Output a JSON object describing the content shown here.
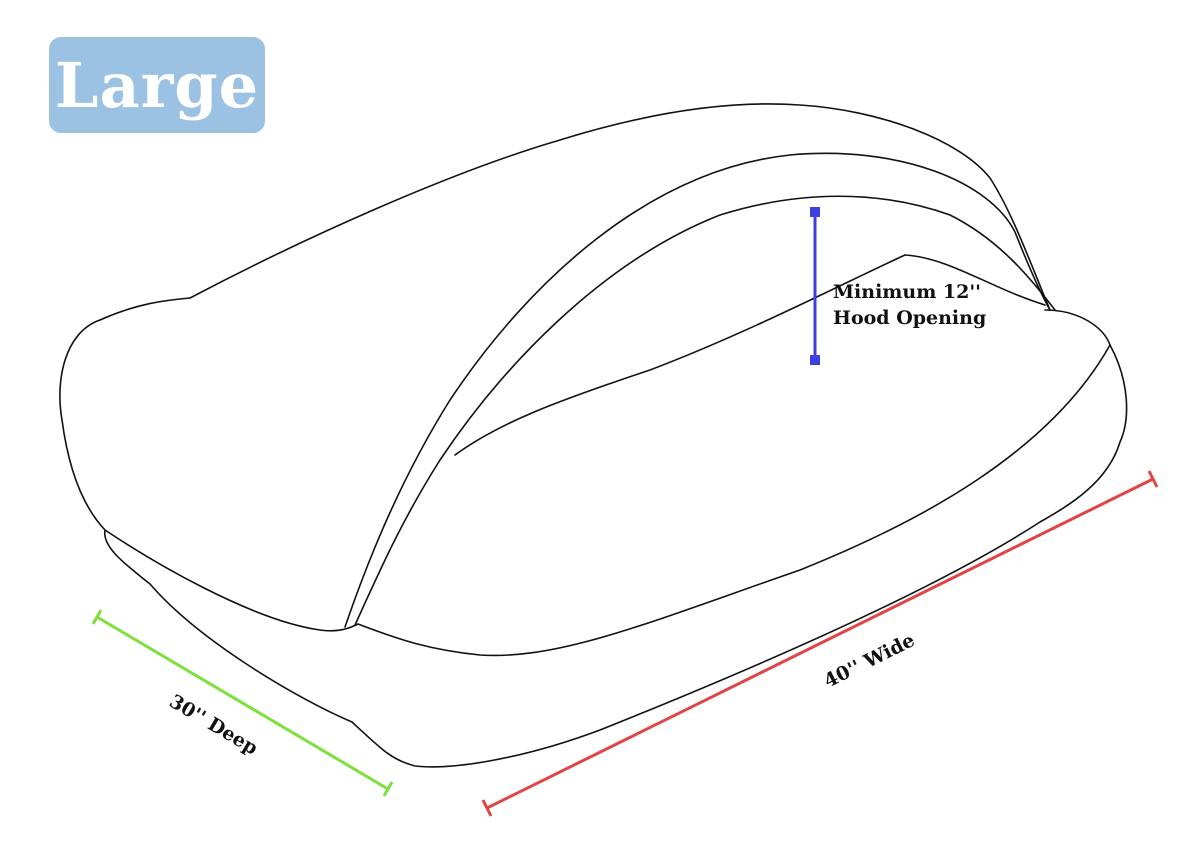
{
  "badge": {
    "label": "Large",
    "color": "#9bc1e3"
  },
  "dimensions": {
    "hood": {
      "line1": "Minimum 12''",
      "line2": "Hood Opening",
      "color": "#3f3fe0"
    },
    "depth": {
      "label": "30'' Deep",
      "color": "#7de03c"
    },
    "width": {
      "label": "40'' Wide",
      "color": "#e04444"
    }
  }
}
